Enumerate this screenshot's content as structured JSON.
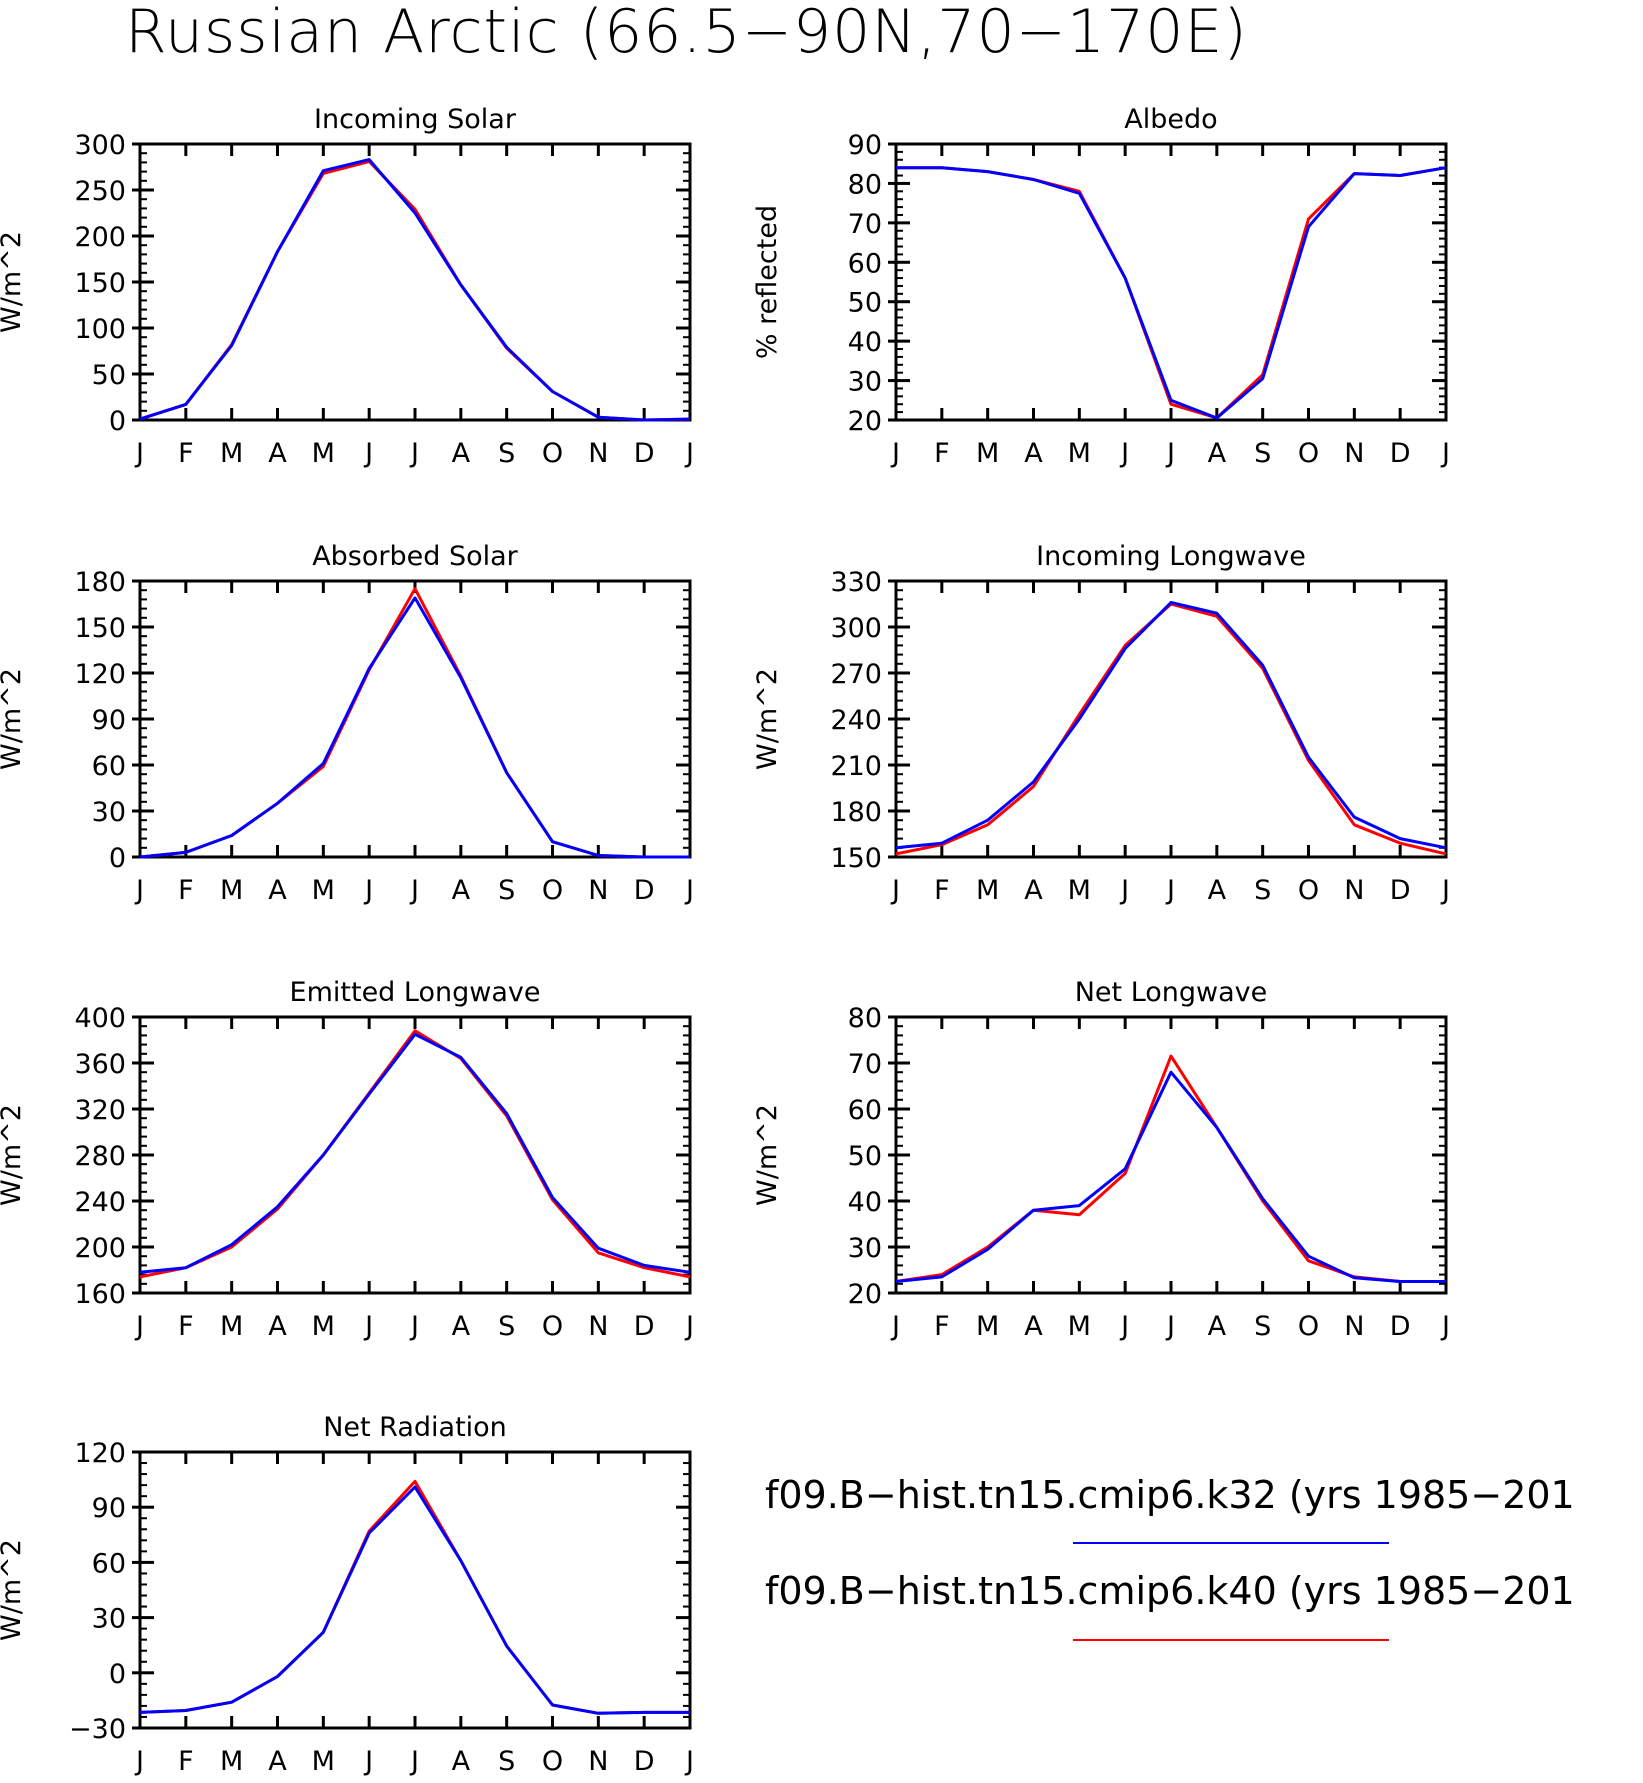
{
  "title": "Russian Arctic (66.5−90N,70−170E)",
  "colors": {
    "k32": "#0000ff",
    "k40": "#ff0000"
  },
  "legend": [
    {
      "label": "f09.B−hist.tn15.cmip6.k32 (yrs 1985−201",
      "color": "#0000ff"
    },
    {
      "label": "f09.B−hist.tn15.cmip6.k40 (yrs 1985−201",
      "color": "#ff0000"
    }
  ],
  "chart_data": [
    {
      "type": "line",
      "title": "Incoming Solar",
      "ylabel": "W/m^2",
      "categories": [
        "J",
        "F",
        "M",
        "A",
        "M",
        "J",
        "J",
        "A",
        "S",
        "O",
        "N",
        "D",
        "J"
      ],
      "ylim": [
        0,
        300
      ],
      "yticks": [
        0,
        50,
        100,
        150,
        200,
        250,
        300
      ],
      "series": [
        {
          "name": "f09.B−hist.tn15.cmip6.k40",
          "color": "#ff0000",
          "values": [
            1,
            17,
            82,
            183,
            268,
            281,
            229,
            147,
            78,
            31,
            3,
            0,
            1
          ]
        },
        {
          "name": "f09.B−hist.tn15.cmip6.k32",
          "color": "#0000ff",
          "values": [
            1,
            17,
            81,
            183,
            271,
            283,
            225,
            147,
            79,
            31,
            3,
            0,
            1
          ]
        }
      ]
    },
    {
      "type": "line",
      "title": "Albedo",
      "ylabel": "% reflected",
      "categories": [
        "J",
        "F",
        "M",
        "A",
        "M",
        "J",
        "J",
        "A",
        "S",
        "O",
        "N",
        "D",
        "J"
      ],
      "ylim": [
        20,
        90
      ],
      "yticks": [
        20,
        30,
        40,
        50,
        60,
        70,
        80,
        90
      ],
      "series": [
        {
          "name": "f09.B−hist.tn15.cmip6.k40",
          "color": "#ff0000",
          "values": [
            84,
            84,
            83,
            81,
            78,
            56,
            24,
            20.5,
            31.5,
            71,
            82.5,
            82,
            84
          ]
        },
        {
          "name": "f09.B−hist.tn15.cmip6.k32",
          "color": "#0000ff",
          "values": [
            84,
            84,
            83,
            81,
            77.5,
            56,
            25,
            20.5,
            30.5,
            69,
            82.5,
            82,
            84
          ]
        }
      ]
    },
    {
      "type": "line",
      "title": "Absorbed Solar",
      "ylabel": "W/m^2",
      "categories": [
        "J",
        "F",
        "M",
        "A",
        "M",
        "J",
        "J",
        "A",
        "S",
        "O",
        "N",
        "D",
        "J"
      ],
      "ylim": [
        0,
        180
      ],
      "yticks": [
        0,
        30,
        60,
        90,
        120,
        150,
        180
      ],
      "series": [
        {
          "name": "f09.B−hist.tn15.cmip6.k40",
          "color": "#ff0000",
          "values": [
            0,
            3,
            14,
            35,
            59,
            122,
            175,
            118,
            55,
            10,
            1,
            0,
            0
          ]
        },
        {
          "name": "f09.B−hist.tn15.cmip6.k32",
          "color": "#0000ff",
          "values": [
            0,
            3,
            14,
            35,
            61,
            123,
            169,
            117,
            55,
            10,
            1,
            0,
            0
          ]
        }
      ]
    },
    {
      "type": "line",
      "title": "Incoming Longwave",
      "ylabel": "W/m^2",
      "categories": [
        "J",
        "F",
        "M",
        "A",
        "M",
        "J",
        "J",
        "A",
        "S",
        "O",
        "N",
        "D",
        "J"
      ],
      "ylim": [
        150,
        330
      ],
      "yticks": [
        150,
        180,
        210,
        240,
        270,
        300,
        330
      ],
      "series": [
        {
          "name": "f09.B−hist.tn15.cmip6.k40",
          "color": "#ff0000",
          "values": [
            152,
            158,
            171,
            196,
            243,
            288,
            315,
            307,
            273,
            213,
            171,
            159,
            152
          ]
        },
        {
          "name": "f09.B−hist.tn15.cmip6.k32",
          "color": "#0000ff",
          "values": [
            156,
            159,
            174,
            199,
            240,
            286,
            316,
            309,
            275,
            215,
            176,
            162,
            156
          ]
        }
      ]
    },
    {
      "type": "line",
      "title": "Emitted Longwave",
      "ylabel": "W/m^2",
      "categories": [
        "J",
        "F",
        "M",
        "A",
        "M",
        "J",
        "J",
        "A",
        "S",
        "O",
        "N",
        "D",
        "J"
      ],
      "ylim": [
        160,
        400
      ],
      "yticks": [
        160,
        200,
        240,
        280,
        320,
        360,
        400
      ],
      "series": [
        {
          "name": "f09.B−hist.tn15.cmip6.k40",
          "color": "#ff0000",
          "values": [
            174,
            182,
            200,
            233,
            280,
            334,
            388,
            364,
            314,
            241,
            195,
            182,
            174
          ]
        },
        {
          "name": "f09.B−hist.tn15.cmip6.k32",
          "color": "#0000ff",
          "values": [
            178,
            182,
            202,
            235,
            280,
            333,
            385,
            365,
            316,
            243,
            199,
            184,
            178
          ]
        }
      ]
    },
    {
      "type": "line",
      "title": "Net Longwave",
      "ylabel": "W/m^2",
      "categories": [
        "J",
        "F",
        "M",
        "A",
        "M",
        "J",
        "J",
        "A",
        "S",
        "O",
        "N",
        "D",
        "J"
      ],
      "ylim": [
        20,
        80
      ],
      "yticks": [
        20,
        30,
        40,
        50,
        60,
        70,
        80
      ],
      "series": [
        {
          "name": "f09.B−hist.tn15.cmip6.k40",
          "color": "#ff0000",
          "values": [
            22.5,
            24,
            30,
            38,
            37,
            46,
            71.5,
            56,
            40,
            27,
            23.5,
            22.5,
            22.5
          ]
        },
        {
          "name": "f09.B−hist.tn15.cmip6.k32",
          "color": "#0000ff",
          "values": [
            22.5,
            23.5,
            29.5,
            38,
            39,
            47,
            68,
            56,
            40.5,
            28,
            23.3,
            22.5,
            22.5
          ]
        }
      ]
    },
    {
      "type": "line",
      "title": "Net Radiation",
      "ylabel": "W/m^2",
      "categories": [
        "J",
        "F",
        "M",
        "A",
        "M",
        "J",
        "J",
        "A",
        "S",
        "O",
        "N",
        "D",
        "J"
      ],
      "ylim": [
        -30,
        120
      ],
      "yticks": [
        -30,
        0,
        30,
        60,
        90,
        120
      ],
      "series": [
        {
          "name": "f09.B−hist.tn15.cmip6.k40",
          "color": "#ff0000",
          "values": [
            -21.5,
            -20.5,
            -16,
            -2,
            22,
            77,
            104,
            61,
            14.5,
            -17.5,
            -22,
            -21.5,
            -21.5
          ]
        },
        {
          "name": "f09.B−hist.tn15.cmip6.k32",
          "color": "#0000ff",
          "values": [
            -21.5,
            -20.5,
            -16,
            -2,
            22,
            76,
            101,
            61,
            14.5,
            -17.5,
            -22,
            -21.5,
            -21.5
          ]
        }
      ]
    }
  ]
}
